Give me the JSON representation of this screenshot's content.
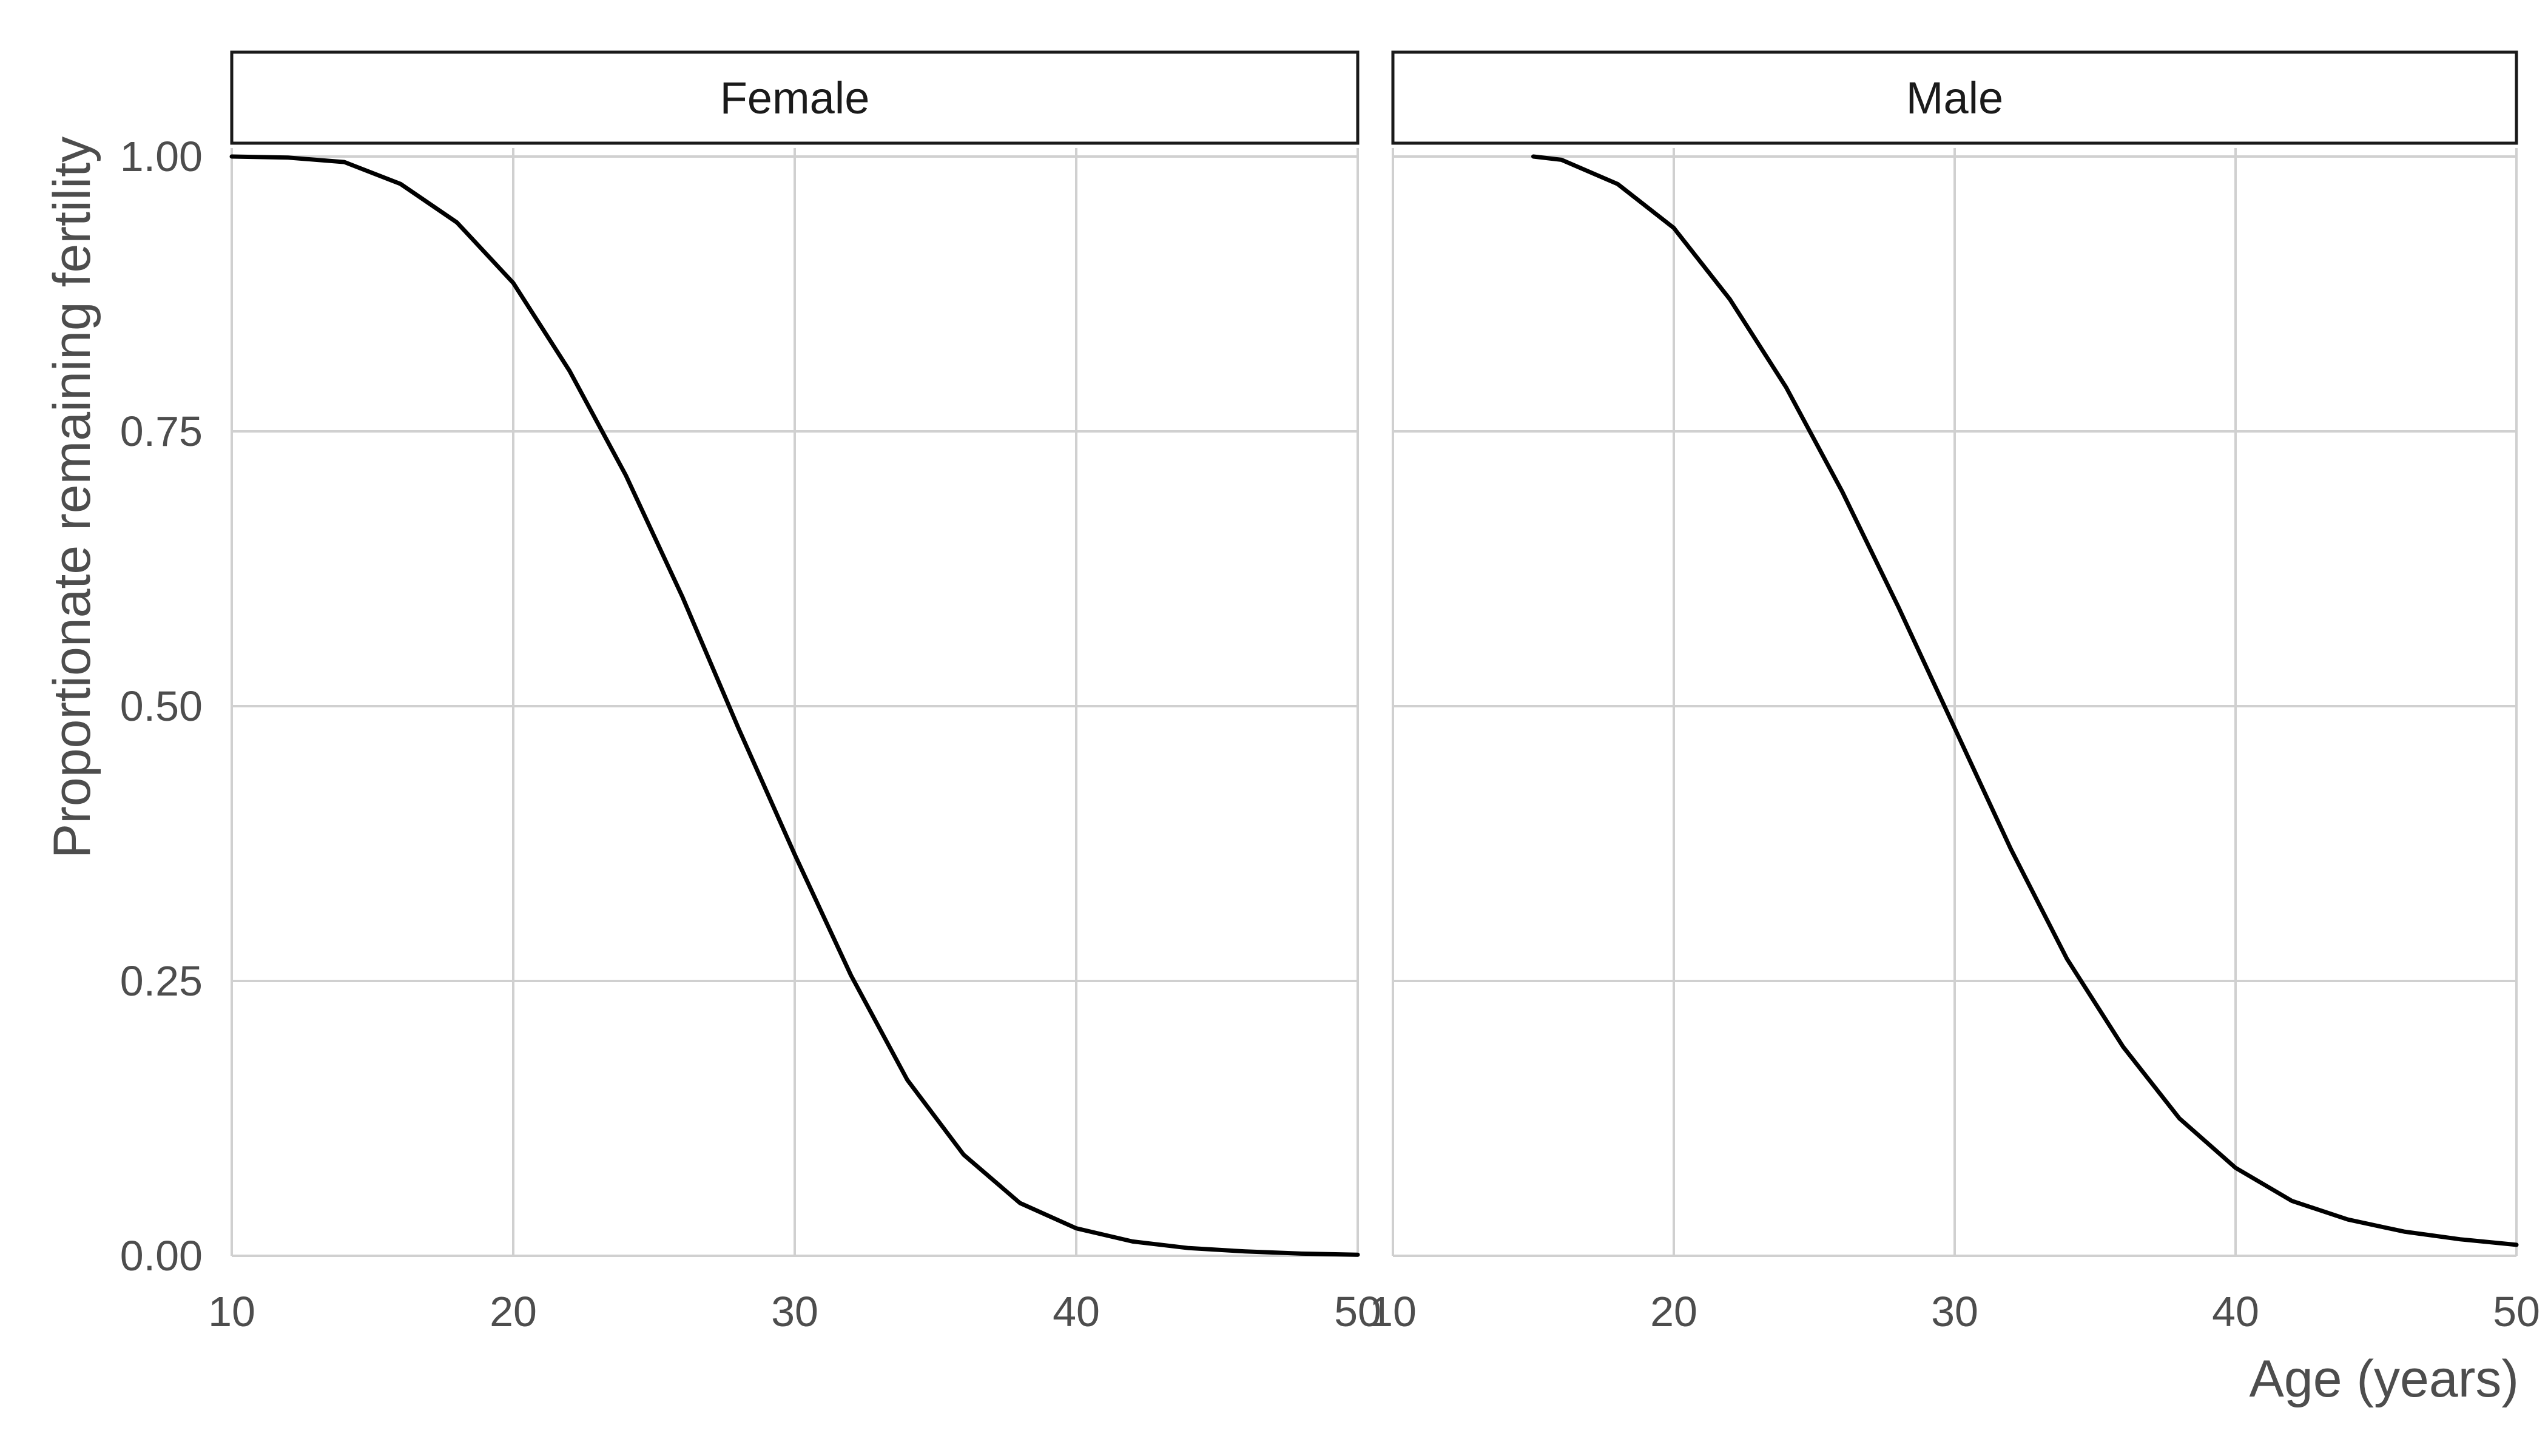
{
  "chart_data": {
    "type": "line",
    "xlabel": "Age (years)",
    "ylabel": "Proportionate remaining fertility",
    "xlim": [
      10,
      50
    ],
    "ylim": [
      0,
      1
    ],
    "x_ticks": [
      10,
      20,
      30,
      40,
      50
    ],
    "x_tick_labels": [
      "10",
      "20",
      "30",
      "40",
      "50"
    ],
    "y_ticks": [
      0,
      0.25,
      0.5,
      0.75,
      1.0
    ],
    "y_tick_labels": [
      "0.00",
      "0.25",
      "0.50",
      "0.75",
      "1.00"
    ],
    "grid": true,
    "line_color": "#000000",
    "panels": [
      {
        "strip_label": "Female",
        "x": [
          10,
          12,
          14,
          16,
          18,
          20,
          22,
          24,
          26,
          28,
          30,
          32,
          34,
          36,
          38,
          40,
          42,
          44,
          46,
          48,
          50
        ],
        "y": [
          1.0,
          0.999,
          0.995,
          0.975,
          0.94,
          0.885,
          0.805,
          0.71,
          0.6,
          0.48,
          0.365,
          0.255,
          0.16,
          0.092,
          0.048,
          0.025,
          0.013,
          0.007,
          0.004,
          0.002,
          0.001
        ]
      },
      {
        "strip_label": "Male",
        "x": [
          15,
          16,
          18,
          20,
          22,
          24,
          26,
          28,
          30,
          32,
          34,
          36,
          38,
          40,
          42,
          44,
          46,
          48,
          50
        ],
        "y": [
          1.0,
          0.997,
          0.975,
          0.935,
          0.87,
          0.79,
          0.695,
          0.59,
          0.48,
          0.37,
          0.27,
          0.19,
          0.125,
          0.08,
          0.05,
          0.033,
          0.022,
          0.015,
          0.01
        ]
      }
    ]
  }
}
